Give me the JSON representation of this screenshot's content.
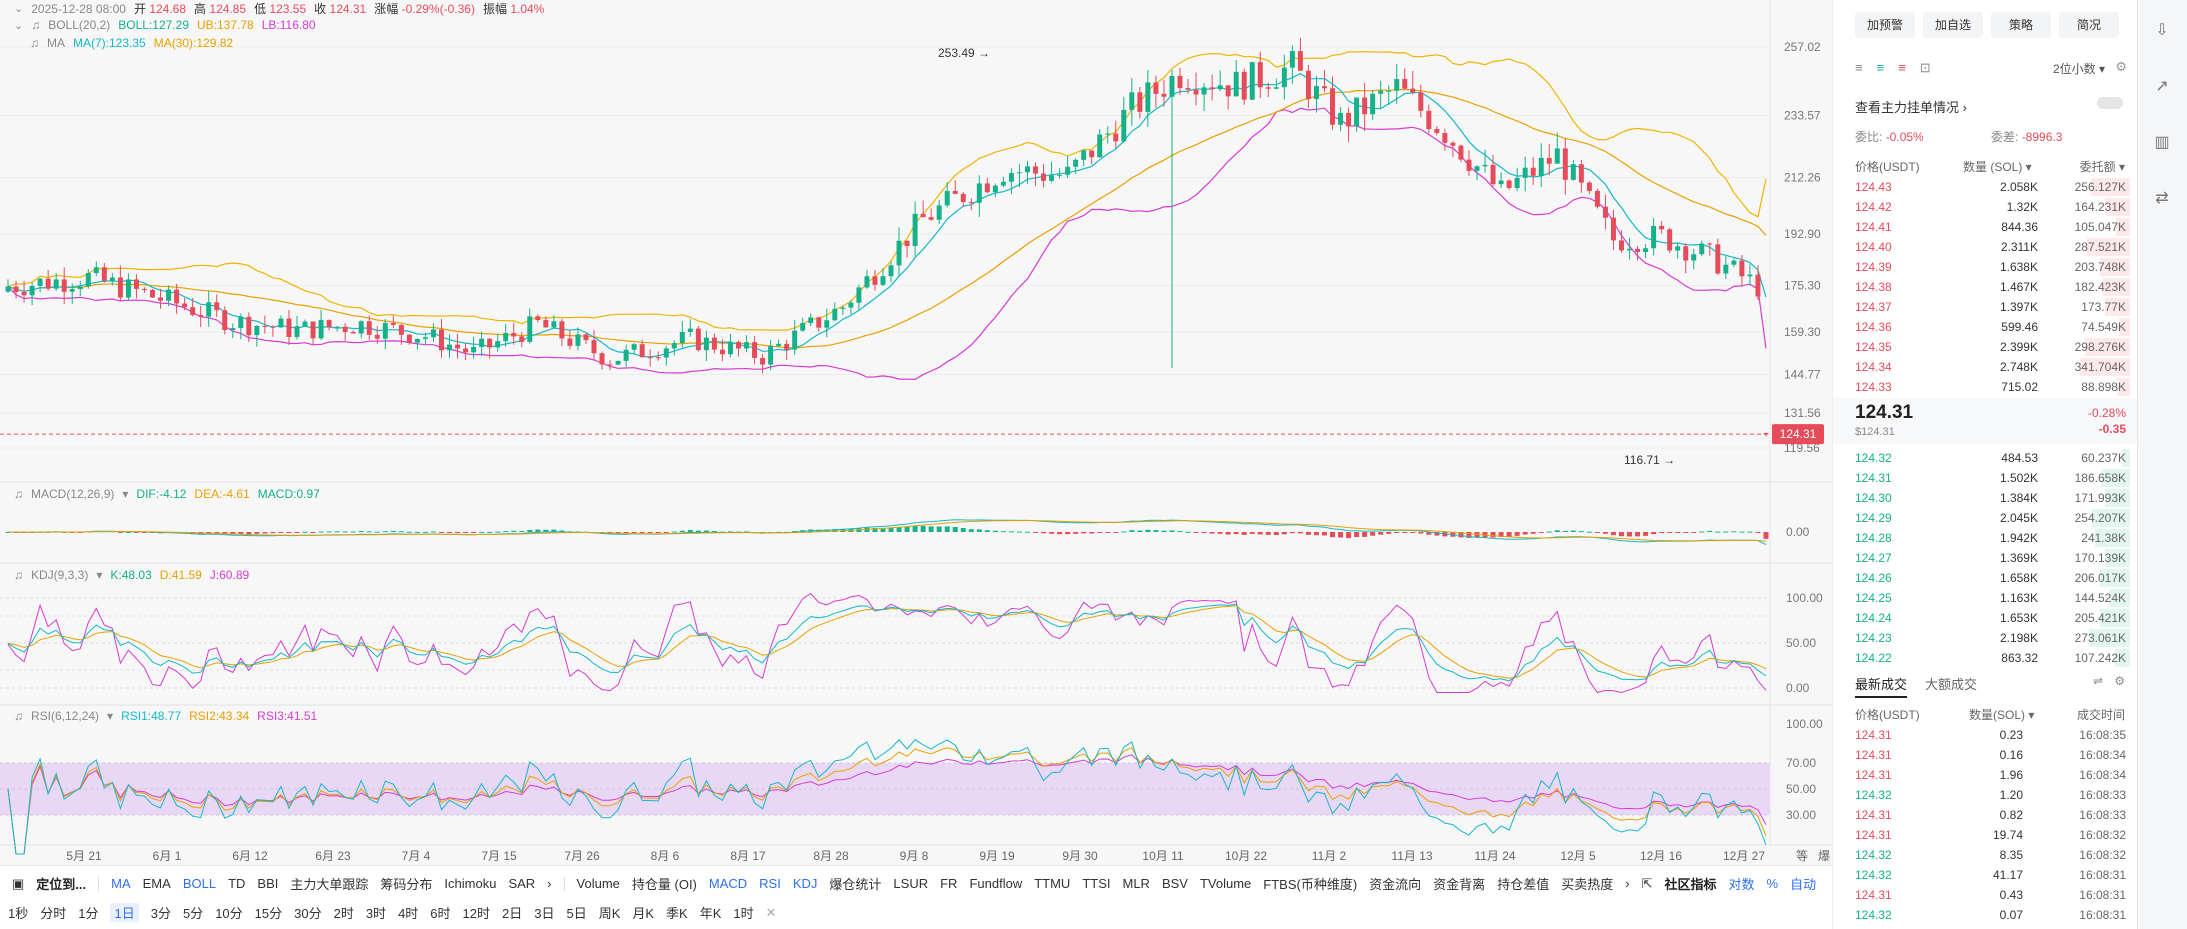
{
  "header": {
    "date": "2025-12-28 08:00",
    "open_label": "开",
    "open": "124.68",
    "high_label": "高",
    "high": "124.85",
    "low_label": "低",
    "low": "123.55",
    "close_label": "收",
    "close": "124.31",
    "change_label": "涨幅",
    "change": "-0.29%(-0.36)",
    "amp_label": "振幅",
    "amp": "1.04%",
    "boll_name": "BOLL(20,2)",
    "boll": "BOLL:127.29",
    "ub": "UB:137.78",
    "lb": "LB:116.80",
    "ma_name": "MA",
    "ma7": "MA(7):123.35",
    "ma30": "MA(30):129.82"
  },
  "price_axis": [
    "257.02",
    "233.57",
    "212.26",
    "192.90",
    "175.30",
    "159.30",
    "144.77",
    "131.56",
    "119.56"
  ],
  "current_price_tag": "124.31",
  "high_marker": "253.49",
  "low_marker": "116.71",
  "macd": {
    "name": "MACD(12,26,9)",
    "dif": "DIF:-4.12",
    "dea": "DEA:-4.61",
    "macd": "MACD:0.97",
    "axis": [
      "0.00"
    ]
  },
  "kdj": {
    "name": "KDJ(9,3,3)",
    "k": "K:48.03",
    "d": "D:41.59",
    "j": "J:60.89",
    "axis": [
      "100.00",
      "50.00",
      "0.00"
    ]
  },
  "rsi": {
    "name": "RSI(6,12,24)",
    "r1": "RSI1:48.77",
    "r2": "RSI2:43.34",
    "r3": "RSI3:41.51",
    "axis": [
      "100.00",
      "70.00",
      "50.00",
      "30.00"
    ]
  },
  "time_axis": [
    "5月 21",
    "6月 1",
    "6月 12",
    "6月 23",
    "7月 4",
    "7月 15",
    "7月 26",
    "8月 6",
    "8月 17",
    "8月 28",
    "9月 8",
    "9月 19",
    "9月 30",
    "10月 11",
    "10月 22",
    "11月 2",
    "11月 13",
    "11月 24",
    "12月 5",
    "12月 16",
    "12月 27"
  ],
  "time_axis_corner": [
    "等",
    "爆"
  ],
  "bottom": {
    "locate": "定位到...",
    "indicators": [
      "MA",
      "EMA",
      "BOLL",
      "TD",
      "BBI",
      "主力大单跟踪",
      "筹码分布",
      "Ichimoku",
      "SAR"
    ],
    "sub_indicators": [
      "Volume",
      "持仓量 (OI)",
      "MACD",
      "RSI",
      "KDJ",
      "爆仓统计",
      "LSUR",
      "FR",
      "Fundflow",
      "TTMU",
      "TTSI",
      "MLR",
      "BSV",
      "TVolume",
      "FTBS(币种维度)",
      "资金流向",
      "资金背离",
      "持仓差值",
      "买卖热度"
    ],
    "community": "社区指标",
    "right_items": [
      "对数",
      "%",
      "自动"
    ],
    "intervals": [
      "1秒",
      "分时",
      "1分",
      "1日",
      "3分",
      "5分",
      "10分",
      "15分",
      "30分",
      "2时",
      "3时",
      "4时",
      "6时",
      "12时",
      "2日",
      "3日",
      "5日",
      "周K",
      "月K",
      "季K",
      "年K",
      "1时"
    ],
    "selected_interval": "1日"
  },
  "panel": {
    "buttons": [
      "加预警",
      "加自选",
      "策略",
      "简况"
    ],
    "precision": "2位小数",
    "main_order_link": "查看主力挂单情况",
    "wb_label": "委比:",
    "wb": "-0.05%",
    "wc_label": "委差:",
    "wc": "-8996.3",
    "cols": [
      "价格(USDT)",
      "数量 (SOL)",
      "委托额"
    ],
    "asks": [
      [
        "124.43",
        "2.058K",
        "256.127K",
        0.55
      ],
      [
        "124.42",
        "1.32K",
        "164.231K",
        0.35
      ],
      [
        "124.41",
        "844.36",
        "105.047K",
        0.2
      ],
      [
        "124.40",
        "2.311K",
        "287.521K",
        0.62
      ],
      [
        "124.39",
        "1.638K",
        "203.748K",
        0.43
      ],
      [
        "124.38",
        "1.467K",
        "182.423K",
        0.38
      ],
      [
        "124.37",
        "1.397K",
        "173.77K",
        0.36
      ],
      [
        "124.36",
        "599.46",
        "74.549K",
        0.15
      ],
      [
        "124.35",
        "2.399K",
        "298.276K",
        0.64
      ],
      [
        "124.34",
        "2.748K",
        "341.704K",
        0.72
      ],
      [
        "124.33",
        "715.02",
        "88.898K",
        0.18
      ]
    ],
    "last_price": "124.31",
    "last_price_usd": "$124.31",
    "last_change_pct": "-0.28%",
    "last_change": "-0.35",
    "bids": [
      [
        "124.32",
        "484.53",
        "60.237K",
        0.12
      ],
      [
        "124.31",
        "1.502K",
        "186.658K",
        0.4
      ],
      [
        "124.30",
        "1.384K",
        "171.993K",
        0.36
      ],
      [
        "124.29",
        "2.045K",
        "254.207K",
        0.54
      ],
      [
        "124.28",
        "1.942K",
        "241.38K",
        0.5
      ],
      [
        "124.27",
        "1.369K",
        "170.139K",
        0.36
      ],
      [
        "124.26",
        "1.658K",
        "206.017K",
        0.43
      ],
      [
        "124.25",
        "1.163K",
        "144.524K",
        0.3
      ],
      [
        "124.24",
        "1.653K",
        "205.421K",
        0.43
      ],
      [
        "124.23",
        "2.198K",
        "273.061K",
        0.58
      ],
      [
        "124.22",
        "863.32",
        "107.242K",
        0.22
      ]
    ],
    "trade_tabs": [
      "最新成交",
      "大额成交"
    ],
    "trade_cols": [
      "价格(USDT)",
      "数量(SOL)",
      "成交时间"
    ],
    "trades": [
      [
        "124.31",
        "0.23",
        "16:08:35",
        "sell"
      ],
      [
        "124.31",
        "0.16",
        "16:08:34",
        "sell"
      ],
      [
        "124.31",
        "1.96",
        "16:08:34",
        "sell"
      ],
      [
        "124.32",
        "1.20",
        "16:08:33",
        "buy"
      ],
      [
        "124.31",
        "0.82",
        "16:08:33",
        "sell"
      ],
      [
        "124.31",
        "19.74",
        "16:08:32",
        "sell"
      ],
      [
        "124.32",
        "8.35",
        "16:08:32",
        "buy"
      ],
      [
        "124.32",
        "41.17",
        "16:08:31",
        "buy"
      ],
      [
        "124.31",
        "0.43",
        "16:08:31",
        "sell"
      ],
      [
        "124.32",
        "0.07",
        "16:08:31",
        "buy"
      ]
    ]
  },
  "colors": {
    "up": "#16b08a",
    "down": "#e64b5a",
    "ma7": "#14b8c8",
    "ma30": "#e9a000",
    "boll_band": "#f0b400",
    "boll_lb": "#d63bd0"
  }
}
